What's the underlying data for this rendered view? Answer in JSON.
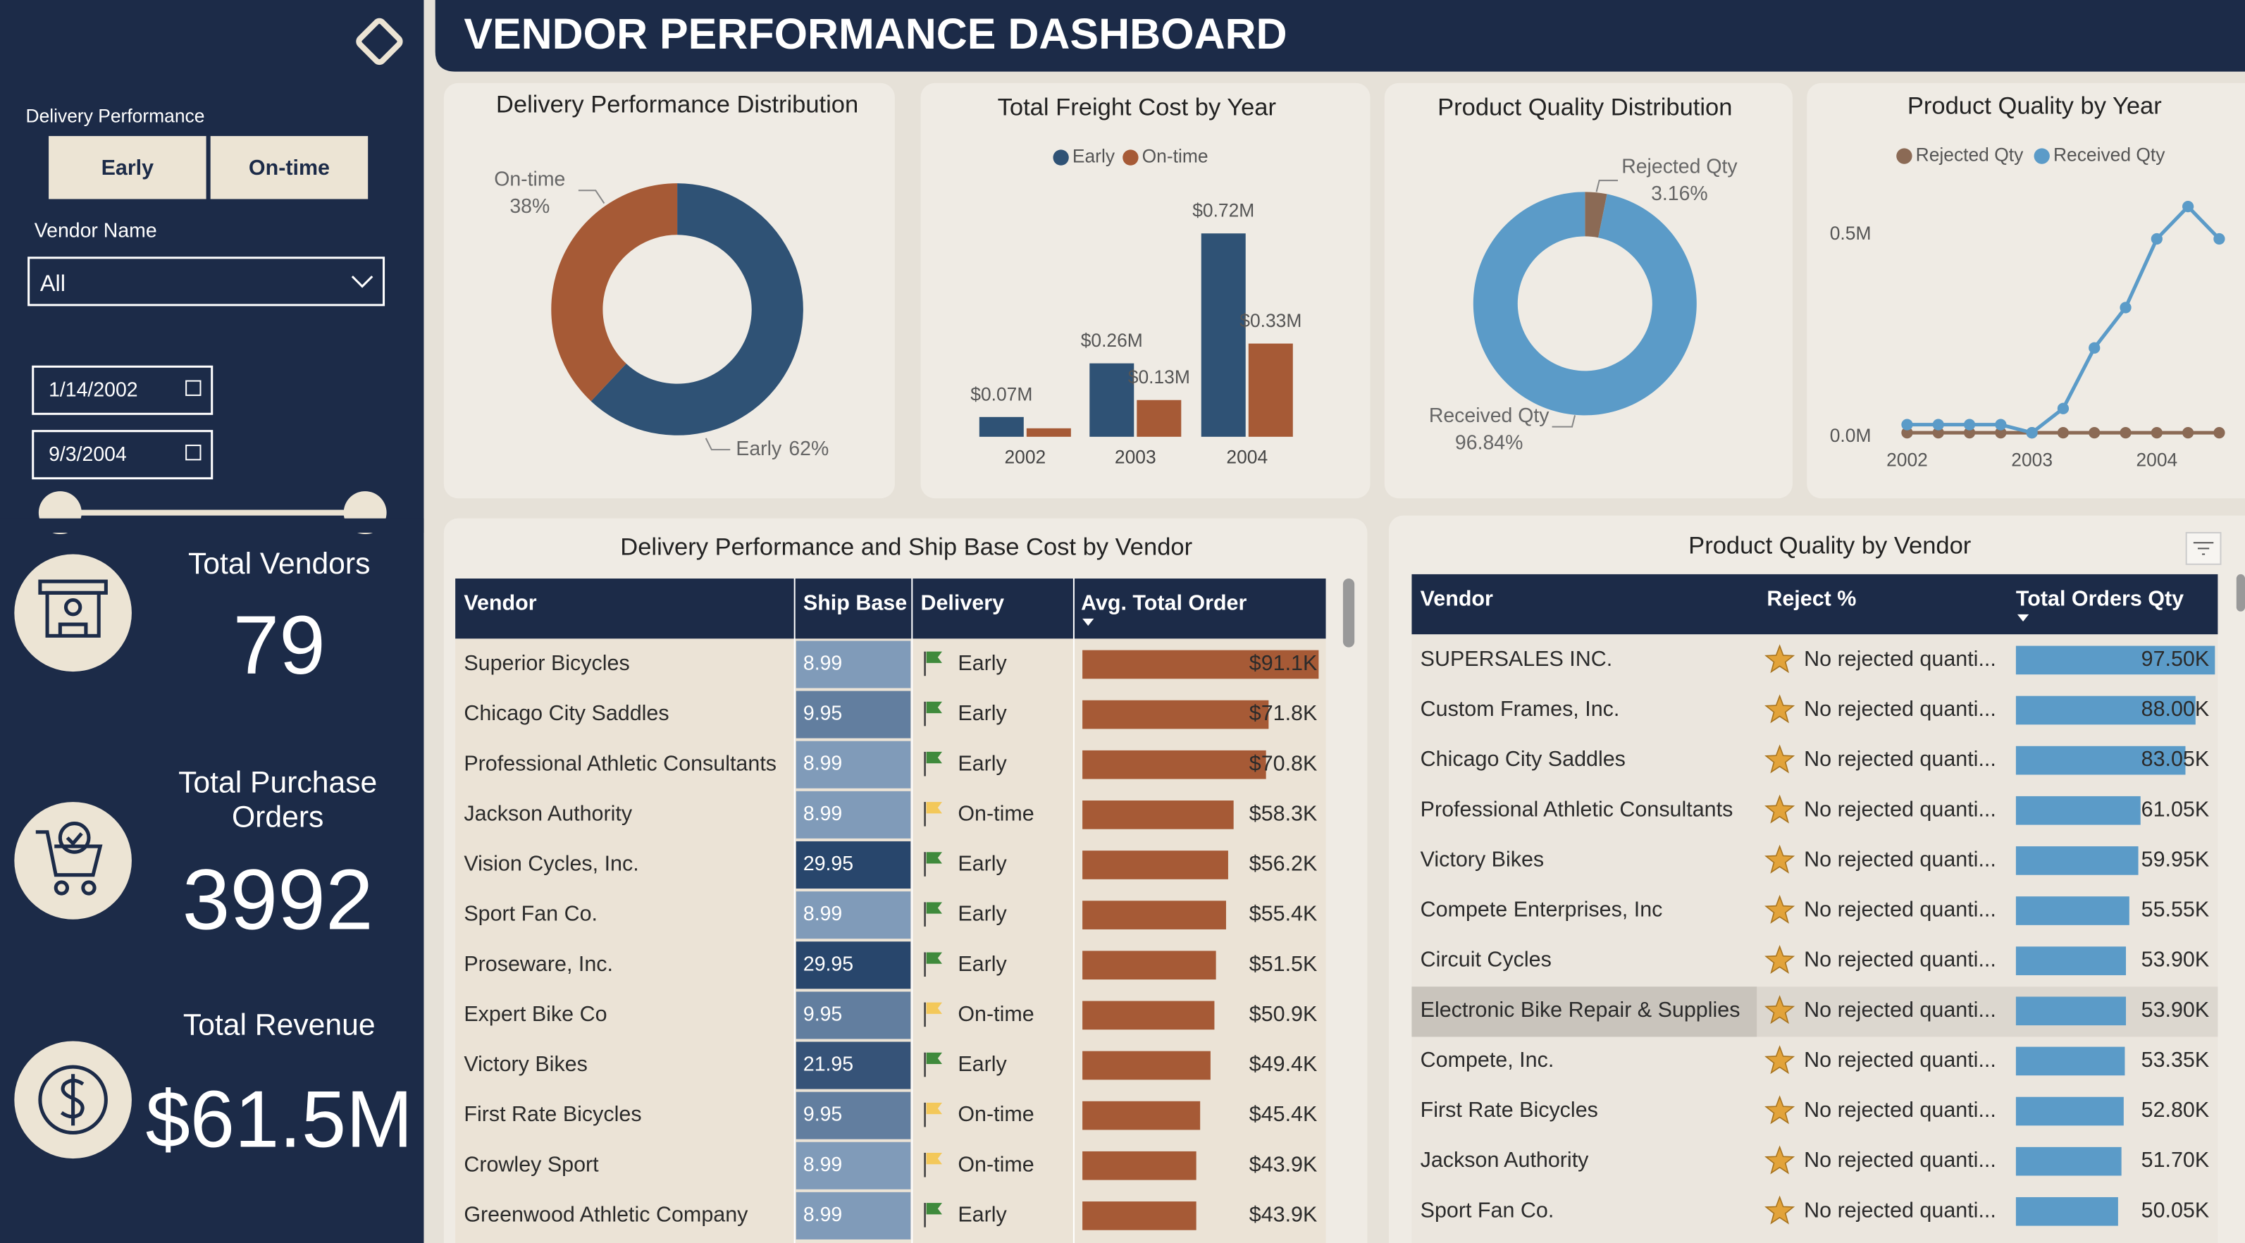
{
  "header": {
    "title": "VENDOR PERFORMANCE DASHBOARD"
  },
  "filters": {
    "delivery_label": "Delivery Performance",
    "delivery_options": [
      "Early",
      "On-time"
    ],
    "vendor_label": "Vendor Name",
    "vendor_value": "All",
    "start_date": "1/14/2002",
    "end_date": "9/3/2004"
  },
  "kpis": [
    {
      "label": "Total Vendors",
      "value": "79"
    },
    {
      "label": "Total Purchase Orders",
      "value": "3992"
    },
    {
      "label": "Total Revenue",
      "value": "$61.5M"
    }
  ],
  "chart_data": [
    {
      "type": "donut",
      "title": "Delivery Performance Distribution",
      "categories": [
        "Early",
        "On-time"
      ],
      "values": [
        62,
        38
      ],
      "value_labels": [
        "62%",
        "38%"
      ],
      "colors": [
        "#2f5275",
        "#a65a36"
      ]
    },
    {
      "type": "bar",
      "title": "Total Freight Cost by Year",
      "categories": [
        "2002",
        "2003",
        "2004"
      ],
      "series": [
        {
          "name": "Early",
          "color": "#2f5275",
          "values": [
            0.07,
            0.26,
            0.72
          ],
          "value_labels": [
            "$0.07M",
            "$0.26M",
            "$0.72M"
          ]
        },
        {
          "name": "On-time",
          "color": "#a65a36",
          "values": [
            0.03,
            0.13,
            0.33
          ],
          "value_labels": [
            null,
            "$0.13M",
            "$0.33M"
          ]
        }
      ],
      "legend": "top"
    },
    {
      "type": "donut",
      "title": "Product Quality Distribution",
      "categories": [
        "Rejected Qty",
        "Received Qty"
      ],
      "values": [
        3.16,
        96.84
      ],
      "value_labels": [
        "3.16%",
        "96.84%"
      ],
      "colors": [
        "#8b6a55",
        "#5b9bc8"
      ]
    },
    {
      "type": "line",
      "title": "Product Quality by Year",
      "categories": [
        "2002",
        null,
        null,
        null,
        "2003",
        null,
        null,
        null,
        "2004",
        null,
        null
      ],
      "series": [
        {
          "name": "Rejected Qty",
          "color": "#8b6a55",
          "values": [
            0.01,
            0.01,
            0.01,
            0.01,
            0.01,
            0.01,
            0.01,
            0.01,
            0.01,
            0.01,
            0.01
          ]
        },
        {
          "name": "Received Qty",
          "color": "#5b9bc8",
          "values": [
            0.03,
            0.03,
            0.03,
            0.03,
            0.01,
            0.07,
            0.22,
            0.32,
            0.49,
            0.57,
            0.49
          ]
        }
      ],
      "ylim": [
        0,
        0.6
      ],
      "yticks": [
        {
          "value": 0,
          "label": "0.0M"
        },
        {
          "value": 0.5,
          "label": "0.5M"
        }
      ],
      "legend": "top",
      "grid": false
    }
  ],
  "tables": [
    {
      "title": "Delivery Performance and Ship Base Cost by Vendor",
      "columns": [
        "Vendor",
        "Ship Base",
        "Delivery",
        "Avg. Total Order"
      ],
      "rows": [
        {
          "vendor": "Superior Bicycles",
          "ship_base": 8.99,
          "delivery": "Early",
          "avg_total_order": 91.1,
          "avg_total_order_label": "$91.1K"
        },
        {
          "vendor": "Chicago City Saddles",
          "ship_base": 9.95,
          "delivery": "Early",
          "avg_total_order": 71.8,
          "avg_total_order_label": "$71.8K"
        },
        {
          "vendor": "Professional Athletic Consultants",
          "ship_base": 8.99,
          "delivery": "Early",
          "avg_total_order": 70.8,
          "avg_total_order_label": "$70.8K"
        },
        {
          "vendor": "Jackson Authority",
          "ship_base": 8.99,
          "delivery": "On-time",
          "avg_total_order": 58.3,
          "avg_total_order_label": "$58.3K"
        },
        {
          "vendor": "Vision Cycles, Inc.",
          "ship_base": 29.95,
          "delivery": "Early",
          "avg_total_order": 56.2,
          "avg_total_order_label": "$56.2K"
        },
        {
          "vendor": "Sport Fan Co.",
          "ship_base": 8.99,
          "delivery": "Early",
          "avg_total_order": 55.4,
          "avg_total_order_label": "$55.4K"
        },
        {
          "vendor": "Proseware, Inc.",
          "ship_base": 29.95,
          "delivery": "Early",
          "avg_total_order": 51.5,
          "avg_total_order_label": "$51.5K"
        },
        {
          "vendor": "Expert Bike Co",
          "ship_base": 9.95,
          "delivery": "On-time",
          "avg_total_order": 50.9,
          "avg_total_order_label": "$50.9K"
        },
        {
          "vendor": "Victory Bikes",
          "ship_base": 21.95,
          "delivery": "Early",
          "avg_total_order": 49.4,
          "avg_total_order_label": "$49.4K"
        },
        {
          "vendor": "First Rate Bicycles",
          "ship_base": 9.95,
          "delivery": "On-time",
          "avg_total_order": 45.4,
          "avg_total_order_label": "$45.4K"
        },
        {
          "vendor": "Crowley Sport",
          "ship_base": 8.99,
          "delivery": "On-time",
          "avg_total_order": 43.9,
          "avg_total_order_label": "$43.9K"
        },
        {
          "vendor": "Greenwood Athletic Company",
          "ship_base": 8.99,
          "delivery": "Early",
          "avg_total_order": 43.9,
          "avg_total_order_label": "$43.9K"
        }
      ]
    },
    {
      "title": "Product Quality by Vendor",
      "columns": [
        "Vendor",
        "Reject %",
        "Total Orders Qty"
      ],
      "rows": [
        {
          "vendor": "SUPERSALES INC.",
          "reject": "No rejected quanti...",
          "total_orders_qty": 97.5,
          "total_orders_qty_label": "97.50K"
        },
        {
          "vendor": "Custom Frames, Inc.",
          "reject": "No rejected quanti...",
          "total_orders_qty": 88.0,
          "total_orders_qty_label": "88.00K"
        },
        {
          "vendor": "Chicago City Saddles",
          "reject": "No rejected quanti...",
          "total_orders_qty": 83.05,
          "total_orders_qty_label": "83.05K"
        },
        {
          "vendor": "Professional Athletic Consultants",
          "reject": "No rejected quanti...",
          "total_orders_qty": 61.05,
          "total_orders_qty_label": "61.05K"
        },
        {
          "vendor": "Victory Bikes",
          "reject": "No rejected quanti...",
          "total_orders_qty": 59.95,
          "total_orders_qty_label": "59.95K"
        },
        {
          "vendor": "Compete Enterprises, Inc",
          "reject": "No rejected quanti...",
          "total_orders_qty": 55.55,
          "total_orders_qty_label": "55.55K"
        },
        {
          "vendor": "Circuit Cycles",
          "reject": "No rejected quanti...",
          "total_orders_qty": 53.9,
          "total_orders_qty_label": "53.90K"
        },
        {
          "vendor": "Electronic Bike Repair & Supplies",
          "reject": "No rejected quanti...",
          "total_orders_qty": 53.9,
          "total_orders_qty_label": "53.90K"
        },
        {
          "vendor": "Compete, Inc.",
          "reject": "No rejected quanti...",
          "total_orders_qty": 53.35,
          "total_orders_qty_label": "53.35K"
        },
        {
          "vendor": "First Rate Bicycles",
          "reject": "No rejected quanti...",
          "total_orders_qty": 52.8,
          "total_orders_qty_label": "52.80K"
        },
        {
          "vendor": "Jackson Authority",
          "reject": "No rejected quanti...",
          "total_orders_qty": 51.7,
          "total_orders_qty_label": "51.70K"
        },
        {
          "vendor": "Sport Fan Co.",
          "reject": "No rejected quanti...",
          "total_orders_qty": 50.05,
          "total_orders_qty_label": "50.05K"
        }
      ]
    }
  ]
}
